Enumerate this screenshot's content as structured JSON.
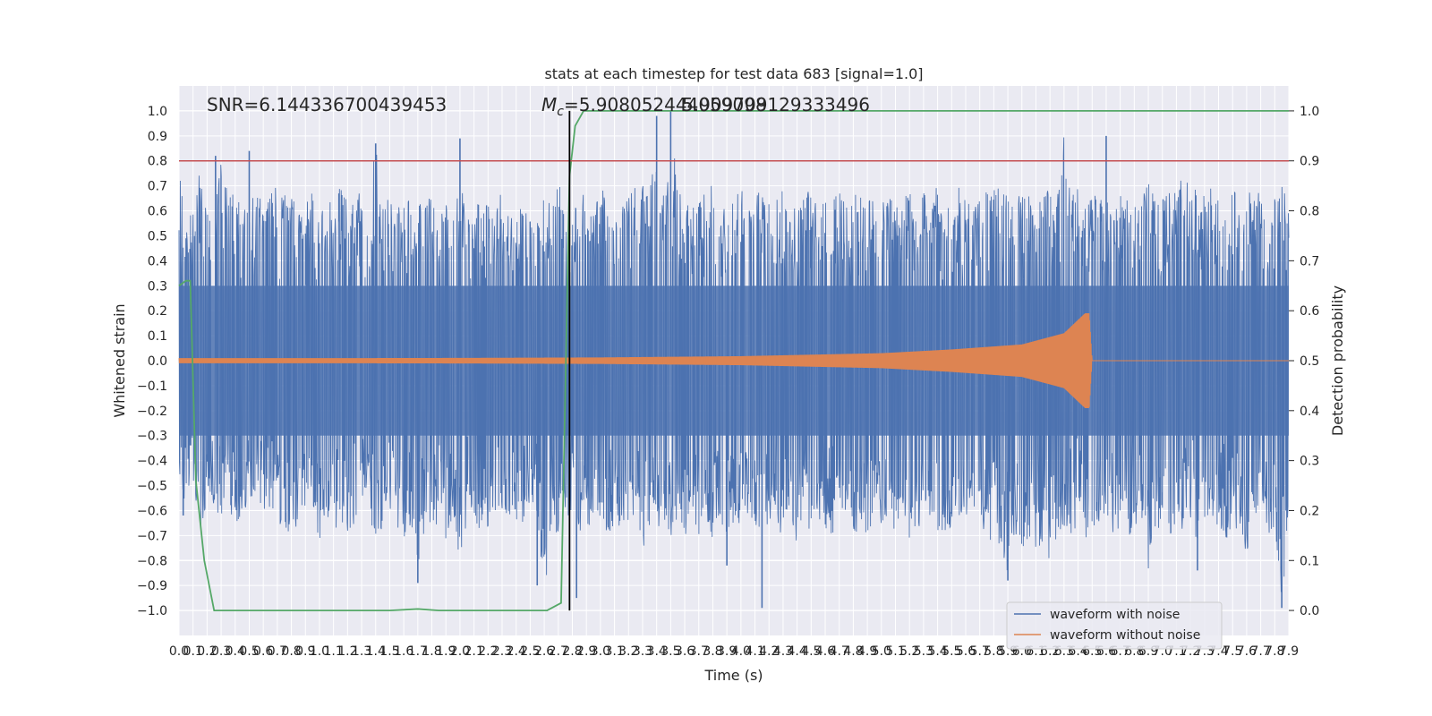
{
  "chart_data": {
    "type": "line",
    "title": "stats at each timestep for test data 683 [signal=1.0]",
    "xlabel": "Time (s)",
    "ylabel": "Whitened strain",
    "y2label": "Detection probability",
    "xlim": [
      0.0,
      7.9
    ],
    "ylim": [
      -1.1,
      1.1
    ],
    "y2lim": [
      -0.05,
      1.05
    ],
    "x_ticks": [
      "0.0",
      "0.1",
      "0.2",
      "0.3",
      "0.4",
      "0.5",
      "0.6",
      "0.7",
      "0.8",
      "0.9",
      "1.0",
      "1.1",
      "1.2",
      "1.3",
      "1.4",
      "1.5",
      "1.6",
      "1.7",
      "1.8",
      "1.9",
      "2.0",
      "2.1",
      "2.2",
      "2.3",
      "2.4",
      "2.5",
      "2.6",
      "2.7",
      "2.8",
      "2.9",
      "3.0",
      "3.1",
      "3.2",
      "3.3",
      "3.4",
      "3.5",
      "3.6",
      "3.7",
      "3.8",
      "3.9",
      "4.0",
      "4.1",
      "4.2",
      "4.3",
      "4.4",
      "4.5",
      "4.6",
      "4.7",
      "4.8",
      "4.9",
      "5.0",
      "5.1",
      "5.2",
      "5.3",
      "5.4",
      "5.5",
      "5.6",
      "5.7",
      "5.8",
      "5.9",
      "6.0",
      "6.1",
      "6.2",
      "6.3",
      "6.4",
      "6.5",
      "6.6",
      "6.7",
      "6.8",
      "6.9",
      "7.0",
      "7.1",
      "7.2",
      "7.3",
      "7.4",
      "7.5",
      "7.6",
      "7.7",
      "7.8",
      "7.9"
    ],
    "y_ticks": [
      "−1.0",
      "−0.9",
      "−0.8",
      "−0.7",
      "−0.6",
      "−0.5",
      "−0.4",
      "−0.3",
      "−0.2",
      "−0.1",
      "0.0",
      "0.1",
      "0.2",
      "0.3",
      "0.4",
      "0.5",
      "0.6",
      "0.7",
      "0.8",
      "0.9",
      "1.0"
    ],
    "y2_ticks": [
      "0.0",
      "0.1",
      "0.2",
      "0.3",
      "0.4",
      "0.5",
      "0.6",
      "0.7",
      "0.8",
      "0.9",
      "1.0"
    ],
    "annotations": {
      "snr": "SNR=6.144336700439453",
      "mc_prefix": "M",
      "mc_sub": "c",
      "mc_value": "=5.908052444059098",
      "mc_overlap": "5.909709129333496"
    },
    "series": [
      {
        "name": "waveform with noise",
        "color": "#4c72b0",
        "style": "dense noise spanning roughly -0.5 to 0.4 with spikes to about ±1.0",
        "samples": [
          [
            0.0,
            -0.48,
            0.78
          ],
          [
            0.05,
            -0.62,
            0.55
          ],
          [
            0.1,
            -0.5,
            0.6
          ],
          [
            0.15,
            -0.72,
            0.82
          ],
          [
            0.2,
            -0.55,
            0.68
          ],
          [
            0.25,
            -0.6,
            0.58
          ],
          [
            0.3,
            -0.66,
            0.84
          ],
          [
            0.35,
            -0.55,
            0.7
          ],
          [
            0.4,
            -0.7,
            0.66
          ],
          [
            0.45,
            -0.6,
            0.62
          ],
          [
            0.5,
            -0.58,
            0.6
          ],
          [
            0.55,
            -0.55,
            0.72
          ],
          [
            0.6,
            -0.62,
            0.6
          ],
          [
            0.65,
            -0.6,
            0.66
          ],
          [
            0.7,
            -0.58,
            0.72
          ],
          [
            0.75,
            -0.8,
            0.68
          ],
          [
            0.8,
            -0.62,
            0.66
          ],
          [
            0.85,
            -0.7,
            0.6
          ],
          [
            0.9,
            -0.64,
            0.64
          ],
          [
            0.95,
            -0.6,
            0.7
          ],
          [
            1.0,
            -0.72,
            0.58
          ],
          [
            1.05,
            -0.6,
            0.64
          ],
          [
            1.1,
            -0.76,
            0.68
          ],
          [
            1.15,
            -0.64,
            0.74
          ],
          [
            1.2,
            -0.7,
            0.66
          ],
          [
            1.25,
            -0.66,
            0.62
          ],
          [
            1.3,
            -0.58,
            0.7
          ],
          [
            1.35,
            -0.64,
            0.6
          ],
          [
            1.4,
            -0.74,
            0.88
          ],
          [
            1.45,
            -0.7,
            0.66
          ],
          [
            1.5,
            -0.6,
            0.64
          ],
          [
            1.55,
            -0.66,
            0.6
          ],
          [
            1.6,
            -0.72,
            0.66
          ],
          [
            1.65,
            -0.68,
            0.7
          ],
          [
            1.7,
            -0.9,
            0.62
          ],
          [
            1.75,
            -0.66,
            0.64
          ],
          [
            1.8,
            -0.7,
            0.66
          ],
          [
            1.85,
            -0.64,
            0.6
          ],
          [
            1.9,
            -0.72,
            0.66
          ],
          [
            1.95,
            -0.66,
            0.62
          ],
          [
            2.0,
            -0.8,
            0.72
          ],
          [
            2.05,
            -0.64,
            0.6
          ],
          [
            2.1,
            -0.7,
            0.68
          ],
          [
            2.15,
            -0.66,
            0.64
          ],
          [
            2.2,
            -0.7,
            0.66
          ],
          [
            2.25,
            -0.6,
            0.62
          ],
          [
            2.3,
            -0.66,
            0.7
          ],
          [
            2.35,
            -0.62,
            0.6
          ],
          [
            2.4,
            -0.72,
            0.62
          ],
          [
            2.45,
            -0.66,
            0.66
          ],
          [
            2.5,
            -0.58,
            0.64
          ],
          [
            2.55,
            -0.62,
            0.6
          ],
          [
            2.6,
            -0.96,
            0.7
          ],
          [
            2.65,
            -0.66,
            0.62
          ],
          [
            2.7,
            -0.7,
            0.8
          ],
          [
            2.75,
            -0.66,
            0.6
          ],
          [
            2.8,
            -0.6,
            0.62
          ],
          [
            2.85,
            -0.7,
            0.68
          ],
          [
            2.9,
            -0.66,
            0.66
          ],
          [
            2.95,
            -0.72,
            0.6
          ],
          [
            3.0,
            -0.64,
            0.7
          ],
          [
            3.05,
            -0.7,
            0.66
          ],
          [
            3.1,
            -0.68,
            0.62
          ],
          [
            3.15,
            -0.66,
            0.64
          ],
          [
            3.2,
            -0.7,
            0.66
          ],
          [
            3.25,
            -0.62,
            0.72
          ],
          [
            3.3,
            -0.76,
            0.7
          ],
          [
            3.35,
            -0.66,
            0.7
          ],
          [
            3.4,
            -0.7,
            0.88
          ],
          [
            3.45,
            -0.64,
            0.66
          ],
          [
            3.5,
            -0.72,
            0.98
          ],
          [
            3.55,
            -0.62,
            0.7
          ],
          [
            3.6,
            -0.7,
            0.66
          ],
          [
            3.65,
            -0.66,
            0.62
          ],
          [
            3.7,
            -0.74,
            0.7
          ],
          [
            3.75,
            -0.66,
            0.66
          ],
          [
            3.8,
            -0.72,
            0.72
          ],
          [
            3.85,
            -0.64,
            0.62
          ],
          [
            3.9,
            -0.7,
            0.68
          ],
          [
            3.95,
            -0.66,
            0.66
          ],
          [
            4.0,
            -0.7,
            0.7
          ],
          [
            4.05,
            -0.62,
            0.62
          ],
          [
            4.1,
            -0.68,
            0.66
          ],
          [
            4.15,
            -0.66,
            0.7
          ],
          [
            4.2,
            -0.7,
            0.64
          ],
          [
            4.25,
            -0.64,
            0.66
          ],
          [
            4.3,
            -0.72,
            0.7
          ],
          [
            4.35,
            -0.66,
            0.62
          ],
          [
            4.4,
            -0.74,
            0.66
          ],
          [
            4.45,
            -0.66,
            0.7
          ],
          [
            4.5,
            -0.7,
            0.68
          ],
          [
            4.55,
            -0.64,
            0.62
          ],
          [
            4.6,
            -0.68,
            0.64
          ],
          [
            4.65,
            -0.7,
            0.66
          ],
          [
            4.7,
            -0.66,
            0.7
          ],
          [
            4.75,
            -0.64,
            0.62
          ],
          [
            4.8,
            -0.72,
            0.66
          ],
          [
            4.85,
            -0.66,
            0.7
          ],
          [
            4.9,
            -0.7,
            0.64
          ],
          [
            4.95,
            -0.62,
            0.66
          ],
          [
            5.0,
            -0.66,
            0.68
          ],
          [
            5.05,
            -0.64,
            0.7
          ],
          [
            5.1,
            -0.7,
            0.62
          ],
          [
            5.15,
            -0.66,
            0.66
          ],
          [
            5.2,
            -0.72,
            0.7
          ],
          [
            5.25,
            -0.66,
            0.6
          ],
          [
            5.3,
            -0.7,
            0.68
          ],
          [
            5.35,
            -0.64,
            0.66
          ],
          [
            5.4,
            -0.68,
            0.7
          ],
          [
            5.45,
            -0.7,
            0.62
          ],
          [
            5.5,
            -0.66,
            0.66
          ],
          [
            5.55,
            -0.64,
            0.7
          ],
          [
            5.6,
            -0.72,
            0.66
          ],
          [
            5.65,
            -0.66,
            0.62
          ],
          [
            5.7,
            -0.7,
            0.68
          ],
          [
            5.75,
            -0.66,
            0.7
          ],
          [
            5.8,
            -0.8,
            0.68
          ],
          [
            5.85,
            -0.72,
            0.72
          ],
          [
            5.9,
            -0.88,
            0.7
          ],
          [
            5.95,
            -0.7,
            0.66
          ],
          [
            6.0,
            -0.76,
            0.66
          ],
          [
            6.05,
            -0.72,
            0.7
          ],
          [
            6.1,
            -0.78,
            0.64
          ],
          [
            6.15,
            -0.76,
            0.66
          ],
          [
            6.2,
            -0.8,
            0.7
          ],
          [
            6.25,
            -0.72,
            0.68
          ],
          [
            6.3,
            -0.66,
            0.9
          ],
          [
            6.35,
            -0.7,
            0.66
          ],
          [
            6.4,
            -0.66,
            0.7
          ],
          [
            6.45,
            -0.72,
            0.62
          ],
          [
            6.5,
            -0.7,
            0.66
          ],
          [
            6.55,
            -0.64,
            0.7
          ],
          [
            6.6,
            -0.68,
            0.64
          ],
          [
            6.65,
            -0.7,
            0.66
          ],
          [
            6.7,
            -0.66,
            0.7
          ],
          [
            6.75,
            -0.72,
            0.64
          ],
          [
            6.8,
            -0.66,
            0.66
          ],
          [
            6.85,
            -0.7,
            0.7
          ],
          [
            6.9,
            -0.84,
            0.72
          ],
          [
            6.95,
            -0.7,
            0.64
          ],
          [
            7.0,
            -0.66,
            0.66
          ],
          [
            7.05,
            -0.72,
            0.7
          ],
          [
            7.1,
            -0.66,
            0.68
          ],
          [
            7.15,
            -0.7,
            0.78
          ],
          [
            7.2,
            -0.66,
            0.66
          ],
          [
            7.25,
            -0.72,
            0.7
          ],
          [
            7.3,
            -0.66,
            0.66
          ],
          [
            7.35,
            -0.7,
            0.72
          ],
          [
            7.4,
            -0.66,
            0.64
          ],
          [
            7.45,
            -0.72,
            0.66
          ],
          [
            7.5,
            -0.66,
            0.7
          ],
          [
            7.55,
            -0.7,
            0.64
          ],
          [
            7.6,
            -0.78,
            0.66
          ],
          [
            7.65,
            -0.7,
            0.7
          ],
          [
            7.7,
            -0.66,
            0.66
          ],
          [
            7.75,
            -0.72,
            0.64
          ],
          [
            7.8,
            -0.66,
            0.66
          ],
          [
            7.85,
            -0.98,
            0.7
          ],
          [
            7.9,
            -0.66,
            0.64
          ]
        ],
        "spikes": [
          [
            0.03,
            -0.62
          ],
          [
            0.26,
            0.82
          ],
          [
            0.5,
            0.84
          ],
          [
            1.4,
            0.87
          ],
          [
            1.7,
            -0.89
          ],
          [
            2.0,
            0.89
          ],
          [
            2.55,
            -0.9
          ],
          [
            2.83,
            -0.95
          ],
          [
            3.4,
            0.98
          ],
          [
            3.5,
            1.0
          ],
          [
            3.9,
            -0.82
          ],
          [
            4.15,
            -0.99
          ],
          [
            5.9,
            -0.88
          ],
          [
            6.6,
            0.9
          ],
          [
            7.25,
            -0.84
          ],
          [
            7.85,
            -0.99
          ]
        ]
      },
      {
        "name": "waveform without noise",
        "color": "#dd8452",
        "style": "chirp centred on 0 with amplitude growing towards merger",
        "envelope": [
          [
            0.0,
            0.01
          ],
          [
            1.0,
            0.01
          ],
          [
            2.0,
            0.011
          ],
          [
            3.0,
            0.013
          ],
          [
            4.0,
            0.018
          ],
          [
            5.0,
            0.03
          ],
          [
            5.5,
            0.045
          ],
          [
            6.0,
            0.065
          ],
          [
            6.3,
            0.11
          ],
          [
            6.45,
            0.19
          ],
          [
            6.48,
            0.19
          ],
          [
            6.5,
            0.0
          ],
          [
            7.9,
            0.0
          ]
        ]
      }
    ],
    "secondary_series": {
      "name": "detection probability",
      "color": "#55a868",
      "axis": "right",
      "x": [
        0.0,
        0.05,
        0.08,
        0.12,
        0.18,
        0.25,
        1.5,
        1.7,
        1.85,
        2.0,
        2.5,
        2.62,
        2.72,
        2.78,
        2.82,
        2.88,
        7.9
      ],
      "y": [
        0.65,
        0.66,
        0.66,
        0.26,
        0.1,
        0.0,
        0.0,
        0.003,
        0.0,
        0.0,
        0.0,
        0.0,
        0.015,
        0.87,
        0.97,
        1.0,
        1.0
      ]
    },
    "reference_lines": [
      {
        "orientation": "horizontal",
        "axis": "right",
        "value": 0.9,
        "color": "#c44e52"
      },
      {
        "orientation": "vertical",
        "value": 2.78,
        "ymin": -1.0,
        "ymax": 1.0,
        "color": "#000000"
      }
    ],
    "legend": {
      "placement": "lower-right",
      "entries": [
        "waveform with noise",
        "waveform without noise"
      ]
    },
    "grid": true
  }
}
